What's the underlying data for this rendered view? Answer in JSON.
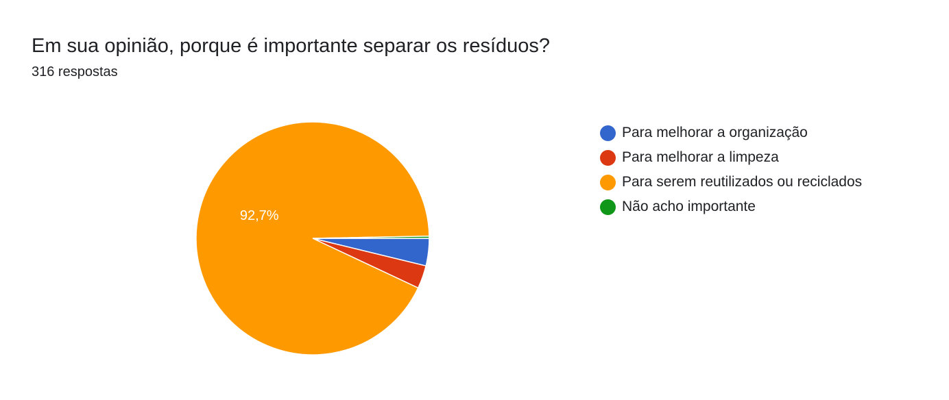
{
  "header": {
    "title": "Em sua opinião, porque é importante separar os resíduos?",
    "response_count": "316 respostas"
  },
  "chart_data": {
    "type": "pie",
    "title": "Em sua opinião, porque é importante separar os resíduos?",
    "subtitle": "316 respostas",
    "legend_position": "right",
    "start_angle_deg": 90,
    "direction": "clockwise",
    "slices": [
      {
        "label": "Para melhorar a organização",
        "value": 3.8,
        "color": "#3366cc",
        "data_label": ""
      },
      {
        "label": "Para melhorar a limpeza",
        "value": 3.2,
        "color": "#dc3912",
        "data_label": ""
      },
      {
        "label": "Para serem reutilizados ou reciclados",
        "value": 92.7,
        "color": "#ff9900",
        "data_label": "92,7%"
      },
      {
        "label": "Não acho importante",
        "value": 0.3,
        "color": "#109618",
        "data_label": ""
      }
    ]
  }
}
